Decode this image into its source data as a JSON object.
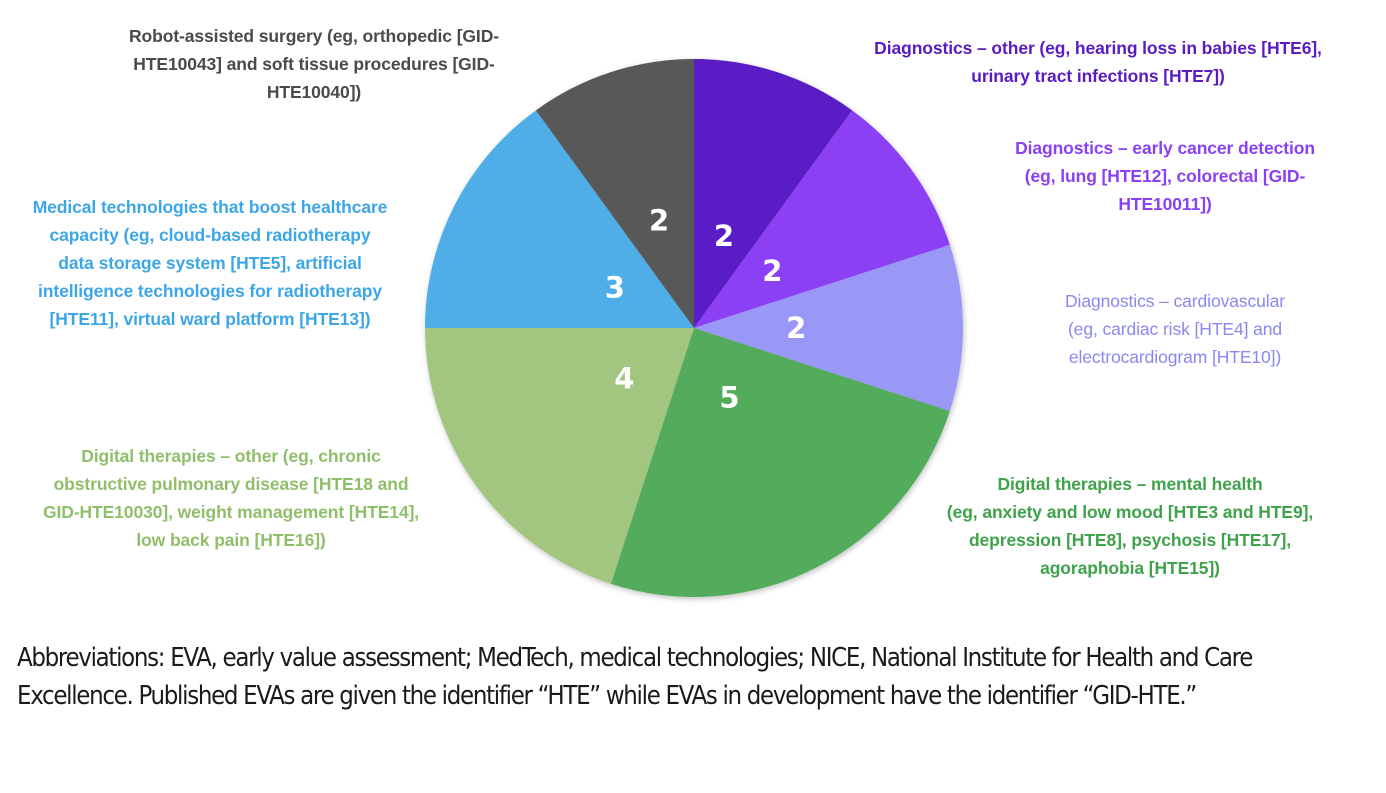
{
  "chart_data": {
    "type": "pie",
    "title": "",
    "start_angle_deg": 0,
    "direction": "clockwise",
    "total": 20,
    "slices": [
      {
        "id": "diag-other",
        "name": "Diagnostics – other (eg, hearing loss in babies [HTE6], urinary tract infections [HTE7])",
        "value": 2,
        "color": "#5a1bc4",
        "label_color": "#5a1bc4"
      },
      {
        "id": "diag-cancer",
        "name": "Diagnostics – early cancer detection (eg, lung [HTE12], colorectal [GID-HTE10011])",
        "value": 2,
        "color": "#8b41f3",
        "label_color": "#8b41f3"
      },
      {
        "id": "diag-cardio",
        "name": "Diagnostics – cardiovascular (eg, cardiac risk [HTE4] and electrocardiogram [HTE10])",
        "value": 2,
        "color": "#9a98f7",
        "label_color": "#8a88f0"
      },
      {
        "id": "dt-mental",
        "name": "Digital therapies – mental health (eg, anxiety and low mood [HTE3 and HTE9], depression [HTE8], psychosis [HTE17], agoraphobia [HTE15])",
        "value": 5,
        "color": "#52ab5b",
        "label_color": "#3ea34a"
      },
      {
        "id": "dt-other",
        "name": "Digital therapies – other (eg, chronic obstructive pulmonary disease [HTE18 and GID-HTE10030], weight management [HTE14], low back pain [HTE16])",
        "value": 4,
        "color": "#a2c67f",
        "label_color": "#8fbf6a"
      },
      {
        "id": "medtech",
        "name": "Medical technologies that boost healthcare capacity (eg, cloud-based radiotherapy data storage system [HTE5], artificial intelligence technologies for radiotherapy [HTE11], virtual ward platform [HTE13])",
        "value": 3,
        "color": "#50aee8",
        "label_color": "#3da6e6"
      },
      {
        "id": "robot",
        "name": "Robot-assisted surgery (eg, orthopedic [GID-HTE10043] and soft tissue procedures [GID-HTE10040])",
        "value": 2,
        "color": "#595959",
        "label_color": "#4a4a4a"
      }
    ],
    "data_labels": [
      "2",
      "2",
      "2",
      "5",
      "4",
      "3",
      "2"
    ]
  },
  "legend_text": {
    "robot": "Robot-assisted surgery (eg, orthopedic [GID-\nHTE10043] and soft tissue procedures [GID-\nHTE10040])",
    "diag_other": "Diagnostics – other (eg, hearing loss in babies [HTE6],\nurinary tract infections [HTE7])",
    "diag_cancer": "Diagnostics – early cancer detection\n(eg, lung [HTE12], colorectal [GID-\nHTE10011])",
    "diag_cardio": "Diagnostics – cardiovascular\n(eg, cardiac risk [HTE4] and\nelectrocardiogram [HTE10])",
    "dt_mental": "Digital therapies – mental health\n(eg, anxiety and low mood [HTE3 and HTE9],\ndepression [HTE8], psychosis [HTE17],\nagoraphobia [HTE15])",
    "dt_other": "Digital therapies – other (eg, chronic\nobstructive pulmonary disease [HTE18 and\nGID-HTE10030], weight management [HTE14],\nlow back pain [HTE16])",
    "medtech": "Medical technologies that boost healthcare\ncapacity (eg, cloud-based radiotherapy\ndata storage system [HTE5], artificial\nintelligence technologies for radiotherapy\n[HTE11], virtual ward platform [HTE13])"
  },
  "footnote": "Abbreviations: EVA, early value assessment; MedTech, medical technologies; NICE, National Institute for Health and Care Excellence. Published EVAs are given the identifier “HTE” while EVAs in development have the identifier “GID-HTE.”"
}
